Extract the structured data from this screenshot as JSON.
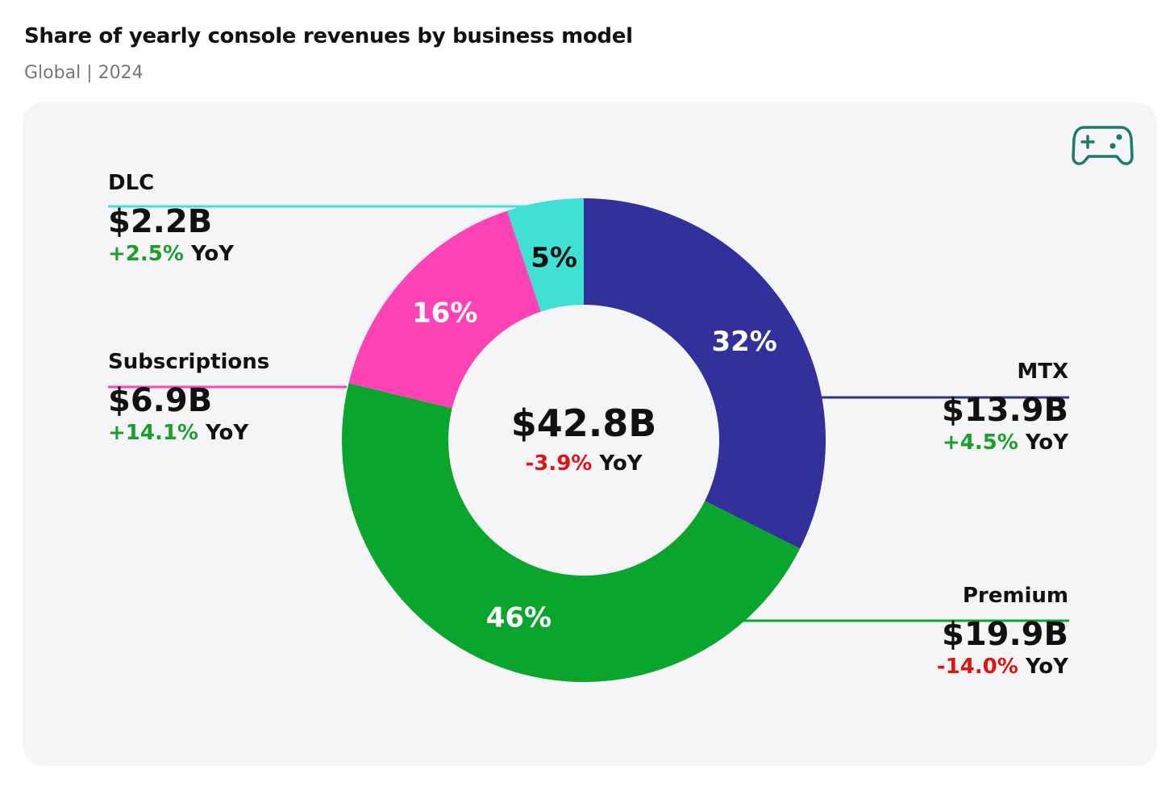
{
  "title": "Share of yearly console revenues by business model",
  "subtitle": "Global | 2024",
  "icon": "gamepad-icon",
  "chart_data": {
    "type": "pie",
    "variant": "donut",
    "total_label": "$42.8B",
    "total_yoy": "-3.9%",
    "yoy_suffix": "YoY",
    "slices": [
      {
        "name": "MTX",
        "share": 32,
        "share_label": "32%",
        "value": 13.9,
        "value_label": "$13.9B",
        "yoy": "+4.5%",
        "color": "#32309a"
      },
      {
        "name": "Premium",
        "share": 46,
        "share_label": "46%",
        "value": 19.9,
        "value_label": "$19.9B",
        "yoy": "-14.0%",
        "color": "#0aa52c"
      },
      {
        "name": "Subscriptions",
        "share": 16,
        "share_label": "16%",
        "value": 6.9,
        "value_label": "$6.9B",
        "yoy": "+14.1%",
        "color": "#fc42b4"
      },
      {
        "name": "DLC",
        "share": 5,
        "share_label": "5%",
        "value": 2.2,
        "value_label": "$2.2B",
        "yoy": "+2.5%",
        "color": "#40e0d4"
      }
    ]
  }
}
